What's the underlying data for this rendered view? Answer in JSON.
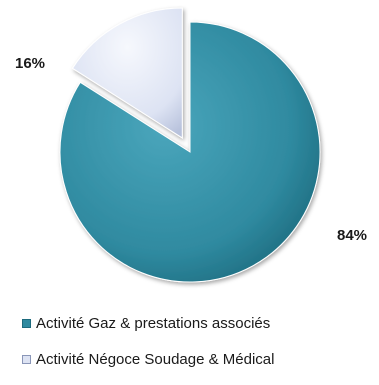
{
  "chart_data": {
    "type": "pie",
    "title": "",
    "slices": [
      {
        "name": "Activité Gaz & prestations associés",
        "value": 84,
        "label": "84%",
        "color": "#2f8aa0",
        "exploded": false
      },
      {
        "name": "Activité Négoce Soudage & Médical",
        "value": 16,
        "label": "16%",
        "color": "#dde3f3",
        "exploded": true
      }
    ],
    "start_angle_deg": 0,
    "direction": "clockwise",
    "legend": "bottom-left"
  }
}
